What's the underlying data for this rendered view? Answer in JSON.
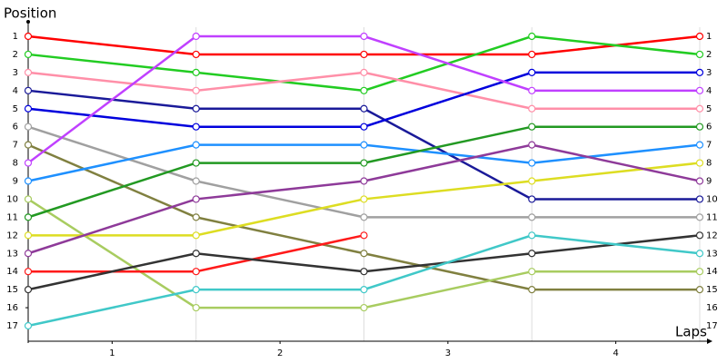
{
  "chart_data": {
    "type": "line",
    "x_label": "Laps",
    "y_label": "Position",
    "x": [
      0,
      1,
      2,
      3,
      4
    ],
    "xlim": [
      0,
      4
    ],
    "xticks": [
      {
        "value": 0.5,
        "label": "1"
      },
      {
        "value": 1.5,
        "label": "2"
      },
      {
        "value": 2.5,
        "label": "3"
      },
      {
        "value": 3.5,
        "label": "4"
      }
    ],
    "ylim": [
      1,
      17
    ],
    "inverted": true,
    "yticks": [
      1,
      2,
      3,
      4,
      5,
      6,
      7,
      8,
      9,
      10,
      11,
      12,
      13,
      14,
      15,
      16,
      17
    ],
    "grid": true,
    "series": [
      {
        "color": "#ff0000",
        "values": [
          1,
          2,
          2,
          2,
          1
        ]
      },
      {
        "color": "#22cc22",
        "values": [
          2,
          3,
          4,
          1,
          2
        ]
      },
      {
        "color": "#ff8fa8",
        "values": [
          3,
          4,
          3,
          5,
          5
        ]
      },
      {
        "color": "#1a1a99",
        "values": [
          4,
          5,
          5,
          10,
          10
        ]
      },
      {
        "color": "#0000dd",
        "values": [
          5,
          6,
          6,
          3,
          3
        ]
      },
      {
        "color": "#a0a0a0",
        "values": [
          6,
          9,
          11,
          11,
          11
        ]
      },
      {
        "color": "#808040",
        "values": [
          7,
          11,
          13,
          15,
          15
        ]
      },
      {
        "color": "#c040ff",
        "values": [
          8,
          1,
          1,
          4,
          4
        ]
      },
      {
        "color": "#1e90ff",
        "values": [
          9,
          7,
          7,
          8,
          7
        ]
      },
      {
        "color": "#a8cc60",
        "values": [
          10,
          16,
          16,
          14,
          14
        ]
      },
      {
        "color": "#229922",
        "values": [
          11,
          8,
          8,
          6,
          6
        ]
      },
      {
        "color": "#dddd22",
        "values": [
          12,
          12,
          10,
          9,
          8
        ]
      },
      {
        "color": "#8e3a99",
        "values": [
          13,
          10,
          9,
          7,
          9
        ]
      },
      {
        "color": "#ff1a1a",
        "values": [
          14,
          14,
          12,
          null,
          null
        ]
      },
      {
        "color": "#333333",
        "values": [
          15,
          13,
          14,
          13,
          12
        ]
      },
      {
        "color": "#40c8c8",
        "values": [
          17,
          15,
          15,
          12,
          13
        ]
      }
    ]
  }
}
